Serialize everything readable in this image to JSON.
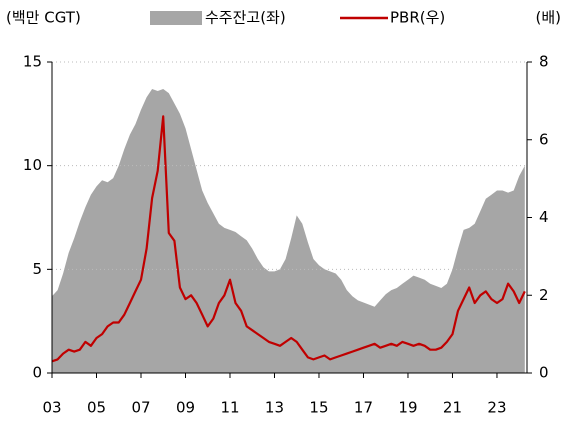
{
  "chart_data": {
    "type": "area-line",
    "y_unit": "(백만 CGT)",
    "y2_unit": "(배)",
    "xlim": [
      2003,
      2024.35
    ],
    "xticks": [
      {
        "value": 2003,
        "label": "03"
      },
      {
        "value": 2005,
        "label": "05"
      },
      {
        "value": 2007,
        "label": "07"
      },
      {
        "value": 2009,
        "label": "09"
      },
      {
        "value": 2011,
        "label": "11"
      },
      {
        "value": 2013,
        "label": "13"
      },
      {
        "value": 2015,
        "label": "15"
      },
      {
        "value": 2017,
        "label": "17"
      },
      {
        "value": 2019,
        "label": "19"
      },
      {
        "value": 2021,
        "label": "21"
      },
      {
        "value": 2023,
        "label": "23"
      }
    ],
    "ylim": [
      0,
      15
    ],
    "yticks": [
      0,
      5,
      10,
      15
    ],
    "y2lim": [
      0,
      8
    ],
    "y2ticks": [
      0,
      2,
      4,
      6,
      8
    ],
    "grid": true,
    "x": [
      2003,
      2003.25,
      2003.5,
      2003.75,
      2004,
      2004.25,
      2004.5,
      2004.75,
      2005,
      2005.25,
      2005.5,
      2005.75,
      2006,
      2006.25,
      2006.5,
      2006.75,
      2007,
      2007.25,
      2007.5,
      2007.75,
      2008,
      2008.25,
      2008.5,
      2008.75,
      2009,
      2009.25,
      2009.5,
      2009.75,
      2010,
      2010.25,
      2010.5,
      2010.75,
      2011,
      2011.25,
      2011.5,
      2011.75,
      2012,
      2012.25,
      2012.5,
      2012.75,
      2013,
      2013.25,
      2013.5,
      2013.75,
      2014,
      2014.25,
      2014.5,
      2014.75,
      2015,
      2015.25,
      2015.5,
      2015.75,
      2016,
      2016.25,
      2016.5,
      2016.75,
      2017,
      2017.25,
      2017.5,
      2017.75,
      2018,
      2018.25,
      2018.5,
      2018.75,
      2019,
      2019.25,
      2019.5,
      2019.75,
      2020,
      2020.25,
      2020.5,
      2020.75,
      2021,
      2021.25,
      2021.5,
      2021.75,
      2022,
      2022.25,
      2022.5,
      2022.75,
      2023,
      2023.25,
      2023.5,
      2023.75,
      2024,
      2024.25
    ],
    "series": [
      {
        "name": "수주잔고(좌)",
        "color": "#a6a6a6",
        "kind": "area",
        "axis": "y",
        "values": [
          3.7,
          4.0,
          4.8,
          5.8,
          6.5,
          7.3,
          8.0,
          8.6,
          9.0,
          9.3,
          9.2,
          9.4,
          10.0,
          10.8,
          11.5,
          12.0,
          12.7,
          13.3,
          13.7,
          13.6,
          13.7,
          13.5,
          13.0,
          12.5,
          11.8,
          10.8,
          9.8,
          8.8,
          8.2,
          7.7,
          7.2,
          7.0,
          6.9,
          6.8,
          6.6,
          6.4,
          6.0,
          5.5,
          5.1,
          4.9,
          4.9,
          5.0,
          5.5,
          6.5,
          7.6,
          7.2,
          6.3,
          5.5,
          5.2,
          5.0,
          4.9,
          4.8,
          4.5,
          4.0,
          3.7,
          3.5,
          3.4,
          3.3,
          3.2,
          3.5,
          3.8,
          4.0,
          4.1,
          4.3,
          4.5,
          4.7,
          4.6,
          4.5,
          4.3,
          4.2,
          4.1,
          4.3,
          5.0,
          6.0,
          6.9,
          7.0,
          7.2,
          7.8,
          8.4,
          8.6,
          8.8,
          8.8,
          8.7,
          8.8,
          9.5,
          10.0
        ]
      },
      {
        "name": "PBR(우)",
        "color": "#c00000",
        "kind": "line",
        "axis": "y2",
        "values": [
          0.3,
          0.35,
          0.5,
          0.6,
          0.55,
          0.6,
          0.8,
          0.7,
          0.9,
          1.0,
          1.2,
          1.3,
          1.3,
          1.5,
          1.8,
          2.1,
          2.4,
          3.2,
          4.5,
          5.2,
          6.6,
          3.6,
          3.4,
          2.2,
          1.9,
          2.0,
          1.8,
          1.5,
          1.2,
          1.4,
          1.8,
          2.0,
          2.4,
          1.8,
          1.6,
          1.2,
          1.1,
          1.0,
          0.9,
          0.8,
          0.75,
          0.7,
          0.8,
          0.9,
          0.8,
          0.6,
          0.4,
          0.35,
          0.4,
          0.45,
          0.35,
          0.4,
          0.45,
          0.5,
          0.55,
          0.6,
          0.65,
          0.7,
          0.75,
          0.65,
          0.7,
          0.75,
          0.7,
          0.8,
          0.75,
          0.7,
          0.75,
          0.7,
          0.6,
          0.6,
          0.65,
          0.8,
          1.0,
          1.6,
          1.9,
          2.2,
          1.8,
          2.0,
          2.1,
          1.9,
          1.8,
          1.9,
          2.3,
          2.1,
          1.8,
          2.1
        ]
      }
    ]
  }
}
